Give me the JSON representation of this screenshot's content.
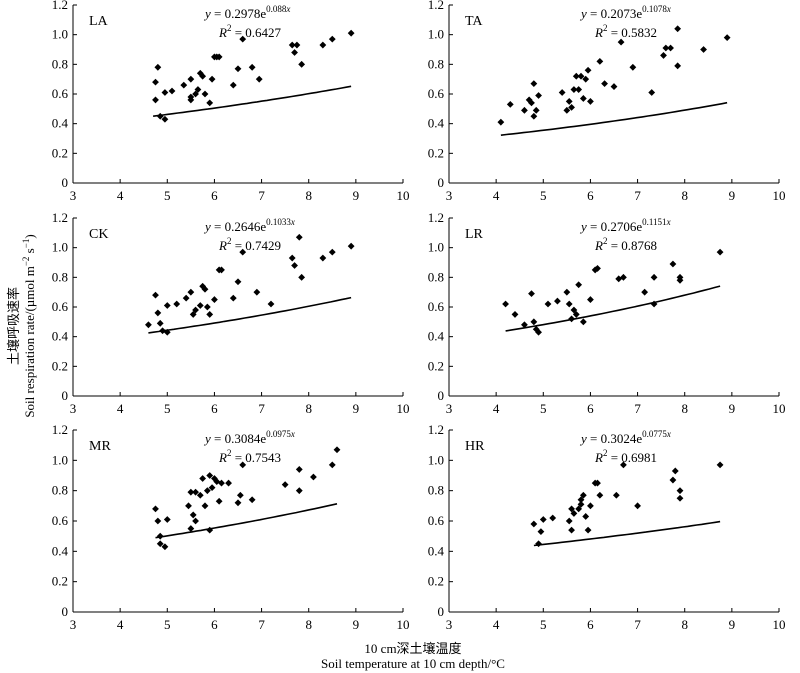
{
  "y_axis_label_cn": "土壤呼吸速率",
  "y_axis_label_en": "Soil respiration rate/(µmol m",
  "y_axis_label_en_exp1": "−2",
  "y_axis_label_en_mid": " s",
  "y_axis_label_en_exp2": "−1",
  "y_axis_label_en_end": ")",
  "x_axis_label_cn": "10 cm深土壤温度",
  "x_axis_label_en": "Soil temperature at 10 cm depth/°C",
  "chart_data": [
    {
      "type": "scatter",
      "panel": "LA",
      "eq_coef": "0.2978",
      "eq_exp": "0.088",
      "r2": "0.6427",
      "fit": {
        "a": 0.2978,
        "b": 0.088,
        "xrange": [
          4.7,
          8.9
        ]
      },
      "xlim": [
        3,
        10
      ],
      "ylim": [
        0,
        1.2
      ],
      "xticks": [
        3,
        4,
        5,
        6,
        7,
        8,
        9,
        10
      ],
      "yticks": [
        0,
        0.2,
        0.4,
        0.6,
        0.8,
        1.0,
        1.2
      ],
      "points": [
        [
          4.75,
          0.68
        ],
        [
          4.8,
          0.78
        ],
        [
          4.75,
          0.56
        ],
        [
          4.85,
          0.45
        ],
        [
          4.95,
          0.43
        ],
        [
          4.95,
          0.61
        ],
        [
          5.1,
          0.62
        ],
        [
          5.35,
          0.66
        ],
        [
          5.5,
          0.7
        ],
        [
          5.5,
          0.56
        ],
        [
          5.5,
          0.58
        ],
        [
          5.6,
          0.6
        ],
        [
          5.65,
          0.63
        ],
        [
          5.7,
          0.74
        ],
        [
          5.75,
          0.72
        ],
        [
          5.8,
          0.6
        ],
        [
          5.9,
          0.54
        ],
        [
          5.95,
          0.7
        ],
        [
          6.0,
          0.85
        ],
        [
          6.05,
          0.85
        ],
        [
          6.1,
          0.85
        ],
        [
          6.4,
          0.66
        ],
        [
          6.5,
          0.77
        ],
        [
          6.6,
          0.97
        ],
        [
          6.8,
          0.78
        ],
        [
          6.95,
          0.7
        ],
        [
          7.65,
          0.93
        ],
        [
          7.7,
          0.88
        ],
        [
          7.75,
          0.93
        ],
        [
          7.85,
          0.8
        ],
        [
          8.3,
          0.93
        ],
        [
          8.5,
          0.97
        ],
        [
          8.9,
          1.01
        ]
      ]
    },
    {
      "type": "scatter",
      "panel": "TA",
      "eq_coef": "0.2073",
      "eq_exp": "0.1078",
      "r2": "0.5832",
      "fit": {
        "a": 0.2073,
        "b": 0.1078,
        "xrange": [
          4.1,
          8.9
        ]
      },
      "xlim": [
        3,
        10
      ],
      "ylim": [
        0,
        1.2
      ],
      "xticks": [
        3,
        4,
        5,
        6,
        7,
        8,
        9,
        10
      ],
      "yticks": [
        0,
        0.2,
        0.4,
        0.6,
        0.8,
        1.0,
        1.2
      ],
      "points": [
        [
          4.1,
          0.41
        ],
        [
          4.3,
          0.53
        ],
        [
          4.6,
          0.49
        ],
        [
          4.7,
          0.56
        ],
        [
          4.75,
          0.54
        ],
        [
          4.8,
          0.67
        ],
        [
          4.8,
          0.45
        ],
        [
          4.9,
          0.59
        ],
        [
          4.85,
          0.49
        ],
        [
          5.4,
          0.61
        ],
        [
          5.5,
          0.49
        ],
        [
          5.55,
          0.55
        ],
        [
          5.6,
          0.51
        ],
        [
          5.65,
          0.63
        ],
        [
          5.7,
          0.72
        ],
        [
          5.75,
          0.63
        ],
        [
          5.8,
          0.72
        ],
        [
          5.85,
          0.57
        ],
        [
          5.9,
          0.7
        ],
        [
          5.95,
          0.76
        ],
        [
          6.0,
          0.55
        ],
        [
          6.2,
          0.82
        ],
        [
          6.3,
          0.67
        ],
        [
          6.5,
          0.65
        ],
        [
          6.65,
          0.95
        ],
        [
          6.9,
          0.78
        ],
        [
          7.3,
          0.61
        ],
        [
          7.55,
          0.86
        ],
        [
          7.6,
          0.91
        ],
        [
          7.7,
          0.91
        ],
        [
          7.85,
          0.79
        ],
        [
          7.85,
          1.04
        ],
        [
          8.4,
          0.9
        ],
        [
          8.9,
          0.98
        ]
      ]
    },
    {
      "type": "scatter",
      "panel": "CK",
      "eq_coef": "0.2646",
      "eq_exp": "0.1033",
      "r2": "0.7429",
      "fit": {
        "a": 0.2646,
        "b": 0.1033,
        "xrange": [
          4.6,
          8.9
        ]
      },
      "xlim": [
        3,
        10
      ],
      "ylim": [
        0,
        1.2
      ],
      "xticks": [
        3,
        4,
        5,
        6,
        7,
        8,
        9,
        10
      ],
      "yticks": [
        0,
        0.2,
        0.4,
        0.6,
        0.8,
        1.0,
        1.2
      ],
      "points": [
        [
          4.6,
          0.48
        ],
        [
          4.75,
          0.68
        ],
        [
          4.8,
          0.56
        ],
        [
          4.85,
          0.49
        ],
        [
          4.9,
          0.44
        ],
        [
          5.0,
          0.43
        ],
        [
          5.0,
          0.61
        ],
        [
          5.2,
          0.62
        ],
        [
          5.4,
          0.66
        ],
        [
          5.5,
          0.7
        ],
        [
          5.55,
          0.55
        ],
        [
          5.6,
          0.58
        ],
        [
          5.7,
          0.61
        ],
        [
          5.75,
          0.74
        ],
        [
          5.8,
          0.72
        ],
        [
          5.85,
          0.6
        ],
        [
          5.9,
          0.55
        ],
        [
          6.0,
          0.65
        ],
        [
          6.1,
          0.85
        ],
        [
          6.15,
          0.85
        ],
        [
          6.4,
          0.66
        ],
        [
          6.5,
          0.77
        ],
        [
          6.6,
          0.97
        ],
        [
          6.9,
          0.7
        ],
        [
          7.2,
          0.62
        ],
        [
          7.65,
          0.93
        ],
        [
          7.7,
          0.88
        ],
        [
          7.8,
          1.07
        ],
        [
          7.85,
          0.8
        ],
        [
          8.3,
          0.93
        ],
        [
          8.5,
          0.97
        ],
        [
          8.9,
          1.01
        ]
      ]
    },
    {
      "type": "scatter",
      "panel": "LR",
      "eq_coef": "0.2706",
      "eq_exp": "0.1151",
      "r2": "0.8768",
      "fit": {
        "a": 0.2706,
        "b": 0.1151,
        "xrange": [
          4.2,
          8.75
        ]
      },
      "xlim": [
        3,
        10
      ],
      "ylim": [
        0,
        1.2
      ],
      "xticks": [
        3,
        4,
        5,
        6,
        7,
        8,
        9,
        10
      ],
      "yticks": [
        0,
        0.2,
        0.4,
        0.6,
        0.8,
        1.0,
        1.2
      ],
      "points": [
        [
          4.2,
          0.62
        ],
        [
          4.4,
          0.55
        ],
        [
          4.6,
          0.48
        ],
        [
          4.75,
          0.69
        ],
        [
          4.8,
          0.5
        ],
        [
          4.85,
          0.45
        ],
        [
          4.9,
          0.43
        ],
        [
          5.1,
          0.62
        ],
        [
          5.3,
          0.64
        ],
        [
          5.5,
          0.7
        ],
        [
          5.55,
          0.62
        ],
        [
          5.6,
          0.52
        ],
        [
          5.65,
          0.58
        ],
        [
          5.7,
          0.55
        ],
        [
          5.75,
          0.75
        ],
        [
          5.85,
          0.5
        ],
        [
          6.0,
          0.65
        ],
        [
          6.1,
          0.85
        ],
        [
          6.15,
          0.86
        ],
        [
          6.6,
          0.79
        ],
        [
          6.7,
          0.8
        ],
        [
          7.15,
          0.7
        ],
        [
          7.35,
          0.8
        ],
        [
          7.35,
          0.62
        ],
        [
          7.75,
          0.89
        ],
        [
          7.9,
          0.8
        ],
        [
          7.9,
          0.78
        ],
        [
          8.75,
          0.97
        ]
      ]
    },
    {
      "type": "scatter",
      "panel": "MR",
      "eq_coef": "0.3084",
      "eq_exp": "0.0975",
      "r2": "0.7543",
      "fit": {
        "a": 0.3084,
        "b": 0.0975,
        "xrange": [
          4.75,
          8.6
        ]
      },
      "xlim": [
        3,
        10
      ],
      "ylim": [
        0,
        1.2
      ],
      "xticks": [
        3,
        4,
        5,
        6,
        7,
        8,
        9,
        10
      ],
      "yticks": [
        0,
        0.2,
        0.4,
        0.6,
        0.8,
        1.0,
        1.2
      ],
      "points": [
        [
          4.75,
          0.68
        ],
        [
          4.8,
          0.6
        ],
        [
          4.85,
          0.5
        ],
        [
          4.85,
          0.45
        ],
        [
          4.95,
          0.43
        ],
        [
          5.0,
          0.61
        ],
        [
          5.45,
          0.7
        ],
        [
          5.5,
          0.79
        ],
        [
          5.5,
          0.55
        ],
        [
          5.55,
          0.64
        ],
        [
          5.6,
          0.6
        ],
        [
          5.6,
          0.79
        ],
        [
          5.7,
          0.77
        ],
        [
          5.75,
          0.88
        ],
        [
          5.8,
          0.7
        ],
        [
          5.85,
          0.8
        ],
        [
          5.9,
          0.9
        ],
        [
          5.9,
          0.54
        ],
        [
          5.95,
          0.82
        ],
        [
          6.0,
          0.88
        ],
        [
          6.05,
          0.86
        ],
        [
          6.1,
          0.73
        ],
        [
          6.15,
          0.85
        ],
        [
          6.3,
          0.85
        ],
        [
          6.5,
          0.72
        ],
        [
          6.55,
          0.77
        ],
        [
          6.6,
          0.97
        ],
        [
          6.8,
          0.74
        ],
        [
          7.5,
          0.84
        ],
        [
          7.8,
          0.94
        ],
        [
          7.8,
          0.8
        ],
        [
          8.1,
          0.89
        ],
        [
          8.5,
          0.97
        ],
        [
          8.6,
          1.07
        ]
      ]
    },
    {
      "type": "scatter",
      "panel": "HR",
      "eq_coef": "0.3024",
      "eq_exp": "0.0775",
      "r2": "0.6981",
      "fit": {
        "a": 0.3024,
        "b": 0.0775,
        "xrange": [
          4.8,
          8.75
        ]
      },
      "xlim": [
        3,
        10
      ],
      "ylim": [
        0,
        1.2
      ],
      "xticks": [
        3,
        4,
        5,
        6,
        7,
        8,
        9,
        10
      ],
      "yticks": [
        0,
        0.2,
        0.4,
        0.6,
        0.8,
        1.0,
        1.2
      ],
      "points": [
        [
          4.8,
          0.58
        ],
        [
          4.9,
          0.45
        ],
        [
          4.95,
          0.53
        ],
        [
          5.0,
          0.61
        ],
        [
          5.2,
          0.62
        ],
        [
          5.55,
          0.6
        ],
        [
          5.6,
          0.68
        ],
        [
          5.6,
          0.54
        ],
        [
          5.65,
          0.65
        ],
        [
          5.75,
          0.68
        ],
        [
          5.8,
          0.71
        ],
        [
          5.8,
          0.74
        ],
        [
          5.85,
          0.77
        ],
        [
          5.9,
          0.63
        ],
        [
          5.95,
          0.54
        ],
        [
          6.0,
          0.7
        ],
        [
          6.1,
          0.85
        ],
        [
          6.15,
          0.85
        ],
        [
          6.2,
          0.77
        ],
        [
          6.55,
          0.77
        ],
        [
          6.7,
          0.97
        ],
        [
          7.0,
          0.7
        ],
        [
          7.75,
          0.87
        ],
        [
          7.8,
          0.93
        ],
        [
          7.9,
          0.8
        ],
        [
          7.9,
          0.75
        ],
        [
          8.75,
          0.97
        ]
      ]
    }
  ]
}
